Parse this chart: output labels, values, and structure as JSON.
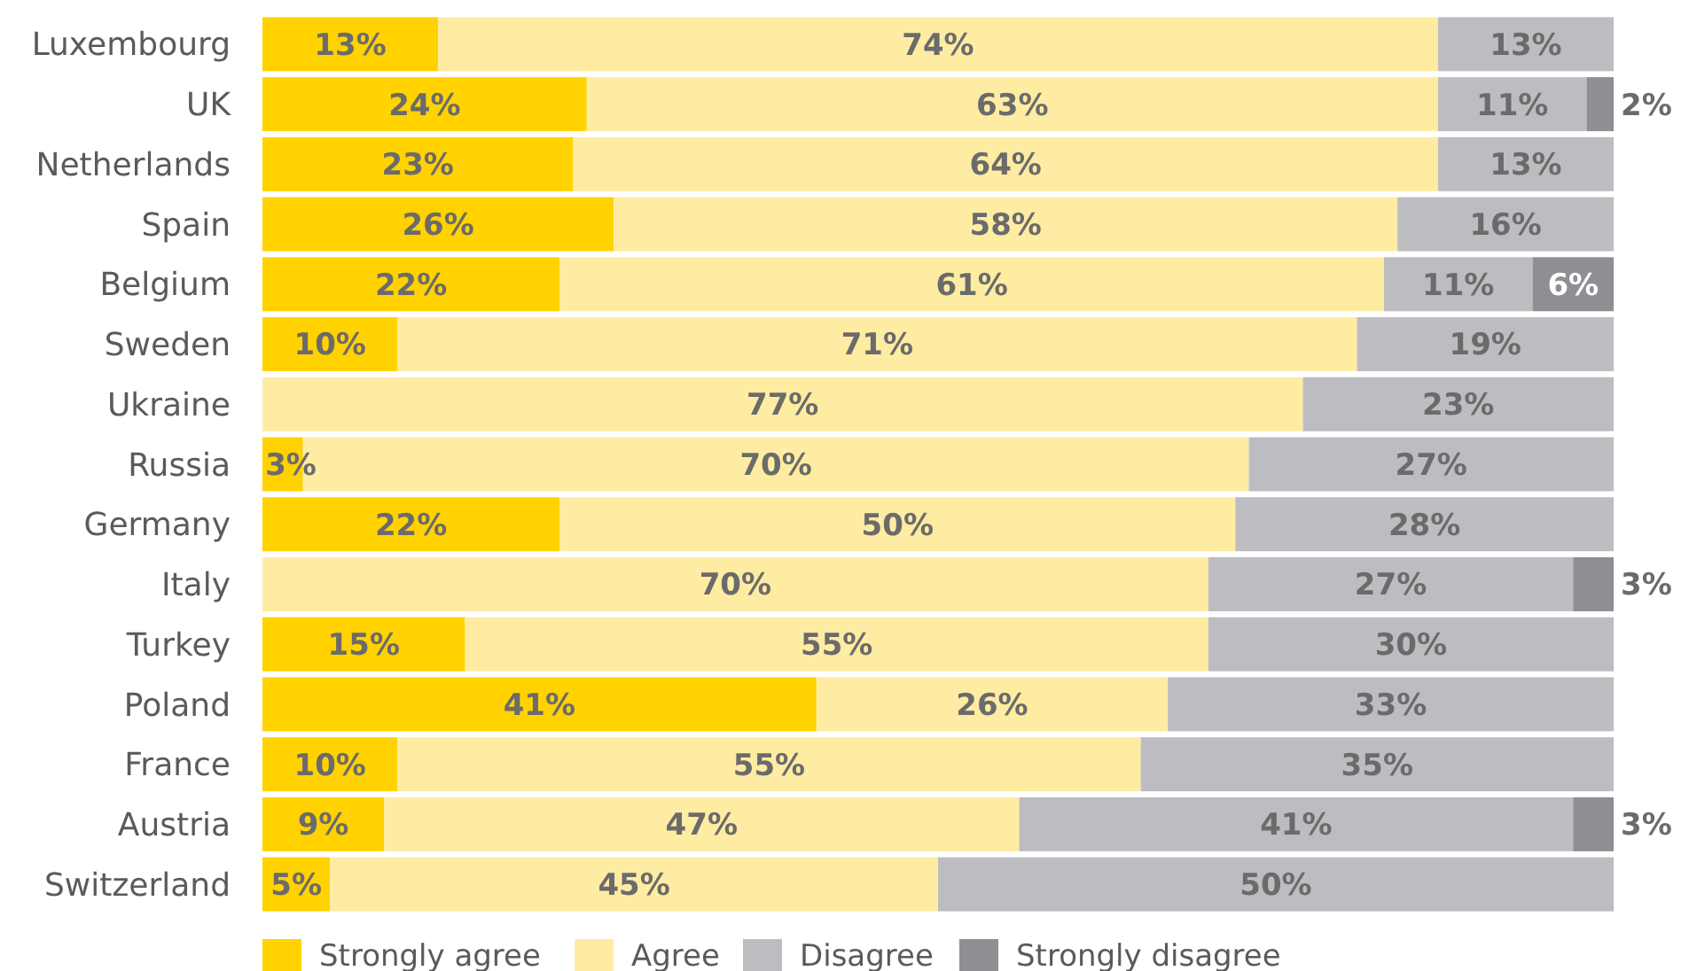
{
  "chart_data": {
    "type": "bar",
    "orientation": "horizontal",
    "stacked": true,
    "legend": "bottom left",
    "categories": [
      "Luxembourg",
      "UK",
      "Netherlands",
      "Spain",
      "Belgium",
      "Sweden",
      "Ukraine",
      "Russia",
      "Germany",
      "Italy",
      "Turkey",
      "Poland",
      "France",
      "Austria",
      "Switzerland"
    ],
    "series": [
      {
        "name": "Strongly agree",
        "color": "#ffd200",
        "values": [
          13,
          24,
          23,
          26,
          22,
          10,
          null,
          3,
          22,
          null,
          15,
          41,
          10,
          9,
          5
        ],
        "value_labels": [
          "13%",
          "24%",
          "23%",
          "26%",
          "22%",
          "10%",
          null,
          "3%",
          "22%",
          null,
          "15%",
          "41%",
          "10%",
          "9%",
          "5%"
        ]
      },
      {
        "name": "Agree",
        "color": "#ffeca3",
        "values": [
          74,
          63,
          64,
          58,
          61,
          71,
          77,
          70,
          50,
          70,
          55,
          26,
          55,
          47,
          45
        ],
        "value_labels": [
          "74%",
          "63%",
          "64%",
          "58%",
          "61%",
          "71%",
          "77%",
          "70%",
          "50%",
          "70%",
          "55%",
          "26%",
          "55%",
          "47%",
          "45%"
        ]
      },
      {
        "name": "Disagree",
        "color": "#bdbdc1",
        "values": [
          13,
          11,
          13,
          16,
          11,
          19,
          23,
          27,
          28,
          27,
          30,
          33,
          35,
          41,
          50
        ],
        "value_labels": [
          "13%",
          "11%",
          "13%",
          "16%",
          "11%",
          "19%",
          "23%",
          "27%",
          "28%",
          "27%",
          "30%",
          "33%",
          "35%",
          "41%",
          "50%"
        ]
      },
      {
        "name": "Strongly disagree",
        "color": "#8e8e93",
        "values": [
          null,
          2,
          null,
          null,
          6,
          null,
          null,
          null,
          null,
          3,
          null,
          null,
          null,
          3,
          null
        ],
        "value_labels": [
          null,
          "2%",
          null,
          null,
          "6%",
          null,
          null,
          null,
          null,
          "3%",
          null,
          null,
          null,
          "3%",
          null
        ]
      }
    ]
  }
}
